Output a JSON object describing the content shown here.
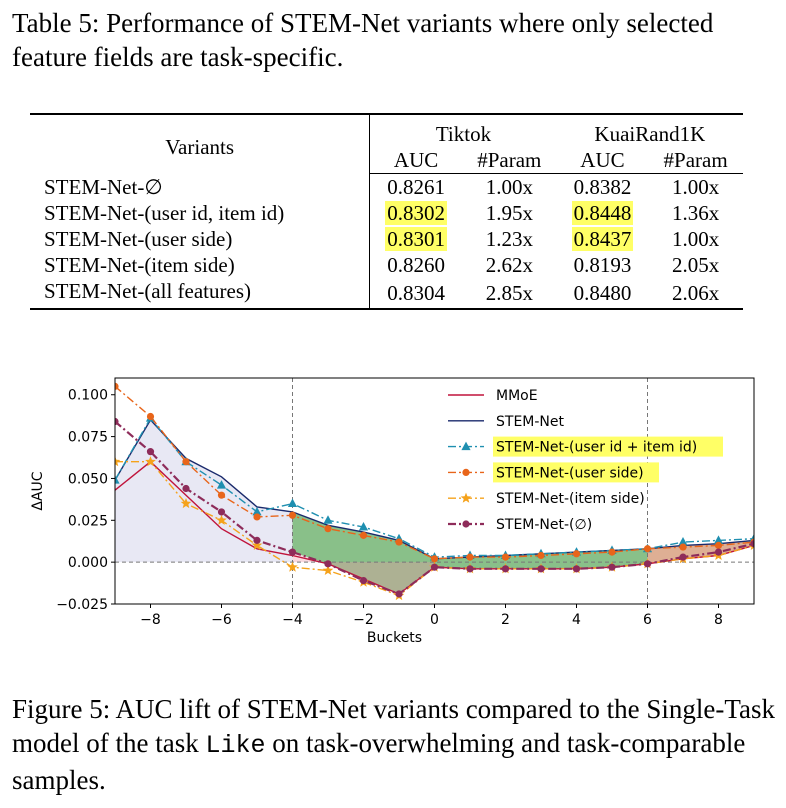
{
  "table_caption": "Table 5: Performance of STEM-Net variants where only selected feature fields are task-specific.",
  "table": {
    "variants_header": "Variants",
    "groups": [
      "Tiktok",
      "KuaiRand1K"
    ],
    "subheaders": [
      "AUC",
      "#Param",
      "AUC",
      "#Param"
    ],
    "rows": [
      {
        "variant": "STEM-Net-∅",
        "cells": [
          "0.8261",
          "1.00x",
          "0.8382",
          "1.00x"
        ],
        "highlight": [
          false,
          false,
          false,
          false
        ]
      },
      {
        "variant": "STEM-Net-(user id, item id)",
        "cells": [
          "0.8302",
          "1.95x",
          "0.8448",
          "1.36x"
        ],
        "highlight": [
          true,
          false,
          true,
          false
        ]
      },
      {
        "variant": "STEM-Net-(user side)",
        "cells": [
          "0.8301",
          "1.23x",
          "0.8437",
          "1.00x"
        ],
        "highlight": [
          true,
          false,
          true,
          false
        ]
      },
      {
        "variant": "STEM-Net-(item side)",
        "cells": [
          "0.8260",
          "2.62x",
          "0.8193",
          "2.05x"
        ],
        "highlight": [
          false,
          false,
          false,
          false
        ]
      },
      {
        "variant": "STEM-Net-(all features)",
        "cells": [
          "0.8304",
          "2.85x",
          "0.8480",
          "2.06x"
        ],
        "highlight": [
          false,
          false,
          false,
          false
        ]
      }
    ]
  },
  "figure_caption_before": "Figure 5: AUC lift of STEM-Net variants compared to the Single-Task model of the task ",
  "figure_caption_code": "Like",
  "figure_caption_after": " on task-overwhelming and task-comparable samples.",
  "chart_data": {
    "type": "line",
    "xlabel": "Buckets",
    "ylabel": "ΔAUC",
    "xlim": [
      -9,
      9
    ],
    "ylim": [
      -0.025,
      0.11
    ],
    "xticks": [
      -8,
      -6,
      -4,
      -2,
      0,
      2,
      4,
      6,
      8
    ],
    "xtick_labels": [
      "−8",
      "−6",
      "−4",
      "−2",
      "0",
      "2",
      "4",
      "6",
      "8"
    ],
    "yticks": [
      -0.025,
      0.0,
      0.025,
      0.05,
      0.075,
      0.1
    ],
    "ytick_labels": [
      "−0.025",
      "0.000",
      "0.025",
      "0.050",
      "0.075",
      "0.100"
    ],
    "vlines": [
      -4,
      6
    ],
    "hline": 0,
    "legend_position": "upper-right",
    "x": [
      -9,
      -8,
      -7,
      -6,
      -5,
      -4,
      -3,
      -2,
      -1,
      0,
      1,
      2,
      3,
      4,
      5,
      6,
      7,
      8,
      9
    ],
    "series": [
      {
        "name": "MMoE",
        "color": "#c0143c",
        "style": "solid",
        "marker": "none",
        "highlight": false,
        "values": [
          0.043,
          0.06,
          0.04,
          0.02,
          0.008,
          0.004,
          -0.001,
          -0.01,
          -0.019,
          -0.003,
          -0.004,
          -0.004,
          -0.004,
          -0.004,
          -0.003,
          -0.001,
          0.002,
          0.004,
          0.01
        ]
      },
      {
        "name": "STEM-Net",
        "color": "#1a2a6c",
        "style": "solid",
        "marker": "none",
        "highlight": false,
        "values": [
          0.049,
          0.085,
          0.062,
          0.051,
          0.033,
          0.03,
          0.022,
          0.018,
          0.013,
          0.002,
          0.003,
          0.004,
          0.005,
          0.006,
          0.007,
          0.008,
          0.01,
          0.011,
          0.013
        ]
      },
      {
        "name": "STEM-Net-(user id + item id)",
        "color": "#1f8fb0",
        "style": "dashdot",
        "marker": "triangle",
        "highlight": true,
        "values": [
          0.049,
          0.086,
          0.06,
          0.046,
          0.03,
          0.035,
          0.025,
          0.021,
          0.014,
          0.003,
          0.004,
          0.004,
          0.005,
          0.006,
          0.007,
          0.008,
          0.012,
          0.013,
          0.014
        ]
      },
      {
        "name": "STEM-Net-(user side)",
        "color": "#e8651a",
        "style": "dashdot",
        "marker": "circle",
        "highlight": true,
        "values": [
          0.105,
          0.087,
          0.06,
          0.04,
          0.027,
          0.028,
          0.02,
          0.016,
          0.012,
          0.002,
          0.003,
          0.003,
          0.004,
          0.005,
          0.006,
          0.008,
          0.009,
          0.01,
          0.012
        ]
      },
      {
        "name": "STEM-Net-(item side)",
        "color": "#f5a21b",
        "style": "dashdot",
        "marker": "star",
        "highlight": false,
        "values": [
          0.06,
          0.06,
          0.035,
          0.025,
          0.01,
          -0.003,
          -0.005,
          -0.012,
          -0.02,
          -0.003,
          -0.004,
          -0.004,
          -0.004,
          -0.004,
          -0.003,
          -0.001,
          0.002,
          0.004,
          0.01
        ]
      },
      {
        "name": "STEM-Net-(∅)",
        "color": "#8e2c5a",
        "style": "dashdot",
        "marker": "circle",
        "highlight": false,
        "values": [
          0.084,
          0.066,
          0.044,
          0.03,
          0.013,
          0.006,
          -0.001,
          -0.011,
          -0.019,
          -0.003,
          -0.004,
          -0.004,
          -0.004,
          -0.004,
          -0.003,
          -0.001,
          0.003,
          0.006,
          0.011
        ]
      }
    ]
  }
}
